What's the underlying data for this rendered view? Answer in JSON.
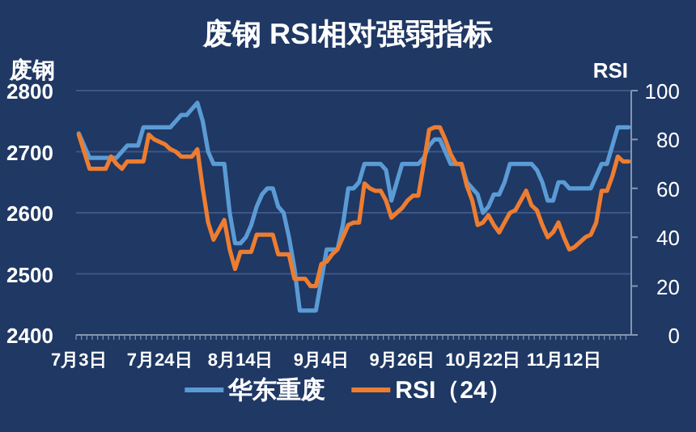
{
  "chart_data": {
    "type": "line",
    "title": "废钢 RSI相对强弱指标",
    "ylabel": "废钢",
    "y2label": "RSI",
    "categories": [
      "7月3日",
      null,
      null,
      null,
      null,
      null,
      null,
      null,
      null,
      null,
      null,
      null,
      null,
      null,
      null,
      "7月24日",
      null,
      null,
      null,
      null,
      null,
      null,
      null,
      null,
      null,
      null,
      null,
      null,
      null,
      null,
      "8月14日",
      null,
      null,
      null,
      null,
      null,
      null,
      null,
      null,
      null,
      null,
      null,
      null,
      null,
      null,
      "9月4日",
      null,
      null,
      null,
      null,
      null,
      null,
      null,
      null,
      null,
      null,
      null,
      null,
      null,
      null,
      "9月26日",
      null,
      null,
      null,
      null,
      null,
      null,
      null,
      null,
      null,
      null,
      null,
      null,
      null,
      null,
      "10月22日",
      null,
      null,
      null,
      null,
      null,
      null,
      null,
      null,
      null,
      null,
      null,
      null,
      null,
      null,
      "11月12日",
      null,
      null,
      null,
      null,
      null,
      null,
      null,
      null,
      null,
      null,
      null,
      null
    ],
    "series": [
      {
        "name": "华东重废",
        "color": "#5b9bd5",
        "values": [
          2730,
          2710,
          2690,
          2690,
          2690,
          2690,
          2690,
          2690,
          2700,
          2710,
          2710,
          2710,
          2740,
          2740,
          2740,
          2740,
          2740,
          2740,
          2750,
          2760,
          2760,
          2770,
          2780,
          2750,
          2700,
          2680,
          2680,
          2680,
          2600,
          2550,
          2550,
          2560,
          2580,
          2610,
          2630,
          2640,
          2640,
          2610,
          2600,
          2560,
          2510,
          2440,
          2440,
          2440,
          2440,
          2490,
          2540,
          2540,
          2540,
          2580,
          2640,
          2640,
          2650,
          2680,
          2680,
          2680,
          2680,
          2670,
          2620,
          2650,
          2680,
          2680,
          2680,
          2680,
          2690,
          2710,
          2720,
          2720,
          2700,
          2680,
          2680,
          2680,
          2650,
          2640,
          2630,
          2600,
          2610,
          2630,
          2630,
          2650,
          2680,
          2680,
          2680,
          2680,
          2680,
          2670,
          2650,
          2620,
          2620,
          2650,
          2650,
          2640,
          2640,
          2640,
          2640,
          2640,
          2660,
          2680,
          2680,
          2710,
          2740,
          2740,
          2740
        ]
      },
      {
        "name": "RSI（24）",
        "color": "#ed7d31",
        "axis": "y2",
        "values": [
          82,
          75,
          68,
          68,
          68,
          68,
          73,
          70,
          68,
          71,
          71,
          71,
          71,
          82,
          80,
          79,
          78,
          76,
          75,
          73,
          73,
          73,
          76,
          60,
          46,
          39,
          43,
          47,
          35,
          27,
          34,
          34,
          34,
          41,
          41,
          41,
          41,
          33,
          33,
          33,
          23,
          23,
          23,
          20,
          20,
          29,
          30,
          33,
          35,
          40,
          45,
          46,
          46,
          62,
          60,
          59,
          59,
          55,
          48,
          50,
          52,
          55,
          57,
          57,
          70,
          84,
          85,
          85,
          80,
          74,
          70,
          70,
          61,
          55,
          45,
          46,
          49,
          45,
          42,
          46,
          50,
          51,
          55,
          59,
          53,
          51,
          45,
          40,
          42,
          46,
          40,
          35,
          36,
          38,
          40,
          41,
          46,
          59,
          59,
          65,
          73,
          71,
          71
        ]
      }
    ],
    "ylim": [
      2400,
      2800
    ],
    "yticks": [
      2400,
      2500,
      2600,
      2700,
      2800
    ],
    "y2lim": [
      0,
      100
    ],
    "y2ticks": [
      0,
      20,
      40,
      60,
      80,
      100
    ],
    "grid": "y",
    "legend": "bottom"
  }
}
